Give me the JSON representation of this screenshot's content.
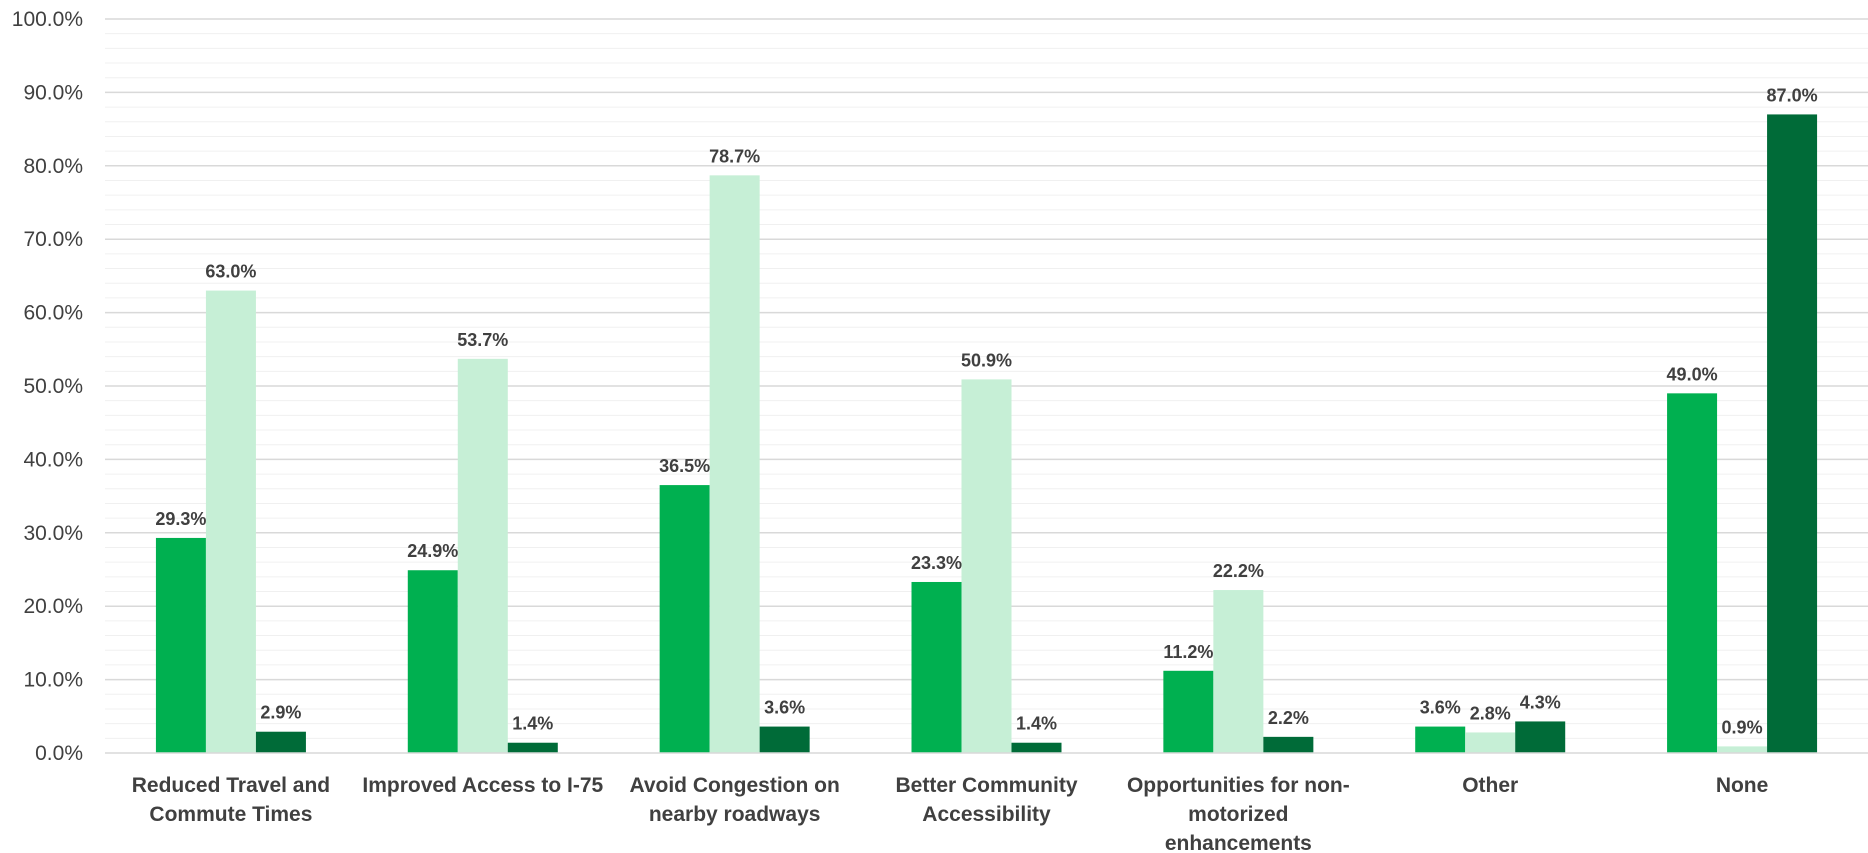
{
  "chart_data": {
    "type": "bar",
    "categories": [
      [
        "Reduced Travel and",
        "Commute Times"
      ],
      [
        "Improved Access to I-75"
      ],
      [
        "Avoid Congestion on",
        "nearby roadways"
      ],
      [
        "Better Community",
        "Accessibility"
      ],
      [
        "Opportunities for non-",
        "motorized",
        "enhancements"
      ],
      [
        "Other"
      ],
      [
        "None"
      ]
    ],
    "series": [
      {
        "values": [
          29.3,
          24.9,
          36.5,
          23.3,
          11.2,
          3.6,
          49.0
        ],
        "color": "#00b050"
      },
      {
        "values": [
          63.0,
          53.7,
          78.7,
          50.9,
          22.2,
          2.8,
          0.9
        ],
        "color": "#c6efd6"
      },
      {
        "values": [
          2.9,
          1.4,
          3.6,
          1.4,
          2.2,
          4.3,
          87.0
        ],
        "color": "#006b38"
      }
    ],
    "data_labels": [
      [
        "29.3%",
        "24.9%",
        "36.5%",
        "23.3%",
        "11.2%",
        "3.6%",
        "49.0%"
      ],
      [
        "63.0%",
        "53.7%",
        "78.7%",
        "50.9%",
        "22.2%",
        "2.8%",
        "0.9%"
      ],
      [
        "2.9%",
        "1.4%",
        "3.6%",
        "1.4%",
        "2.2%",
        "4.3%",
        "87.0%"
      ]
    ],
    "ylim": [
      0,
      100
    ],
    "yticks": [
      "0.0%",
      "10.0%",
      "20.0%",
      "30.0%",
      "40.0%",
      "50.0%",
      "60.0%",
      "70.0%",
      "80.0%",
      "90.0%",
      "100.0%"
    ],
    "title": "",
    "xlabel": "",
    "ylabel": "",
    "grid": true,
    "legend": "none"
  }
}
